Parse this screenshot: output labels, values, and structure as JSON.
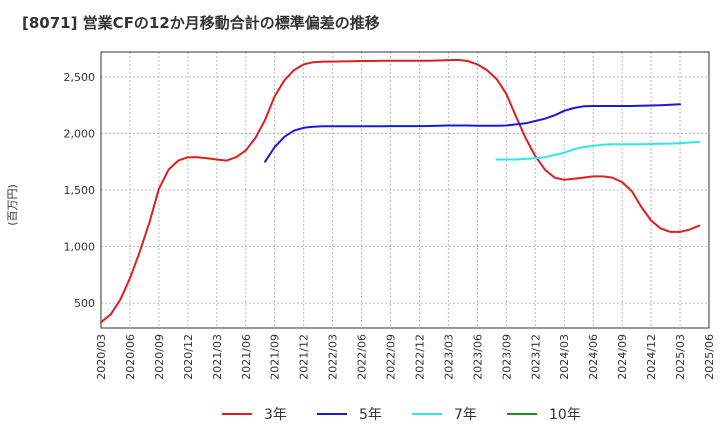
{
  "chart_data": {
    "type": "line",
    "title": "[8071]  営業CFの12か月移動合計の標準偏差の推移",
    "ylabel": "(百万円)",
    "xlabel": "",
    "ylim": [
      280,
      2720
    ],
    "yticks": [
      500,
      1000,
      1500,
      2000,
      2500
    ],
    "ytick_labels": [
      "500",
      "1,000",
      "1,500",
      "2,000",
      "2,500"
    ],
    "x_start": "2020/03",
    "x_end": "2025/06",
    "xtick_labels": [
      "2020/03",
      "2020/06",
      "2020/09",
      "2020/12",
      "2021/03",
      "2021/06",
      "2021/09",
      "2021/12",
      "2022/03",
      "2022/06",
      "2022/09",
      "2022/12",
      "2023/03",
      "2023/06",
      "2023/09",
      "2023/12",
      "2024/03",
      "2024/06",
      "2024/09",
      "2024/12",
      "2025/03",
      "2025/06"
    ],
    "grid": true,
    "legend_position": "bottom",
    "series": [
      {
        "name": "3年",
        "color": "#dd1f1f",
        "start": "2020/03",
        "values": [
          330,
          400,
          530,
          720,
          950,
          1210,
          1510,
          1680,
          1760,
          1790,
          1790,
          1780,
          1770,
          1760,
          1790,
          1850,
          1960,
          2120,
          2330,
          2470,
          2560,
          2610,
          2630,
          2635,
          2635,
          2637,
          2638,
          2640,
          2640,
          2642,
          2642,
          2642,
          2642,
          2643,
          2643,
          2645,
          2648,
          2650,
          2640,
          2610,
          2560,
          2480,
          2350,
          2150,
          1960,
          1800,
          1680,
          1610,
          1590,
          1600,
          1610,
          1620,
          1620,
          1610,
          1570,
          1490,
          1350,
          1230,
          1160,
          1130,
          1130,
          1150,
          1185
        ]
      },
      {
        "name": "5年",
        "color": "#1a1adc",
        "start": "2021/08",
        "values": [
          1750,
          1880,
          1970,
          2025,
          2050,
          2060,
          2063,
          2063,
          2063,
          2063,
          2063,
          2063,
          2064,
          2065,
          2065,
          2065,
          2065,
          2066,
          2068,
          2070,
          2070,
          2070,
          2068,
          2068,
          2068,
          2070,
          2080,
          2090,
          2110,
          2130,
          2160,
          2200,
          2225,
          2240,
          2243,
          2243,
          2243,
          2243,
          2243,
          2245,
          2247,
          2250,
          2253,
          2258
        ]
      },
      {
        "name": "7年",
        "color": "#2fe6ea",
        "start": "2023/08",
        "values": [
          1770,
          1770,
          1770,
          1775,
          1780,
          1790,
          1810,
          1830,
          1860,
          1880,
          1890,
          1900,
          1905,
          1905,
          1905,
          1905,
          1907,
          1908,
          1910,
          1915,
          1920,
          1925
        ]
      },
      {
        "name": "10年",
        "color": "#1f8a1f",
        "start": "2025/03",
        "values": []
      }
    ]
  }
}
